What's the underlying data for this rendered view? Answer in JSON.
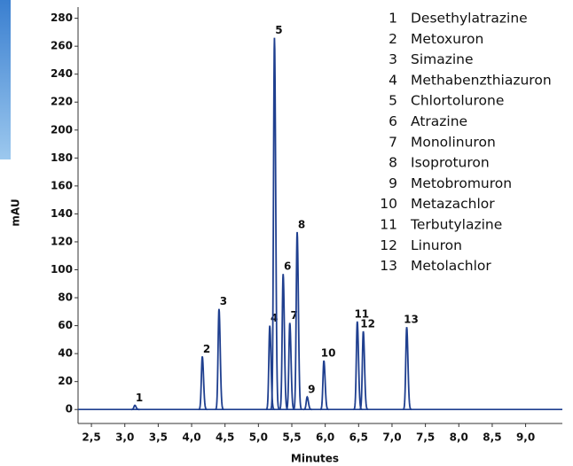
{
  "chart_data": {
    "type": "chromatogram",
    "x_label": "Minutes",
    "y_label": "mAU",
    "xlim": [
      2.3,
      9.55
    ],
    "ylim": [
      -10,
      288
    ],
    "xticks": [
      {
        "value": 2.5,
        "label": "2,5"
      },
      {
        "value": 3.0,
        "label": "3,0"
      },
      {
        "value": 3.5,
        "label": "3,5"
      },
      {
        "value": 4.0,
        "label": "4,0"
      },
      {
        "value": 4.5,
        "label": "4,5"
      },
      {
        "value": 5.0,
        "label": "5,0"
      },
      {
        "value": 5.5,
        "label": "5,5"
      },
      {
        "value": 6.0,
        "label": "6,0"
      },
      {
        "value": 6.5,
        "label": "6,5"
      },
      {
        "value": 7.0,
        "label": "7,0"
      },
      {
        "value": 7.5,
        "label": "7,5"
      },
      {
        "value": 8.0,
        "label": "8,0"
      },
      {
        "value": 8.5,
        "label": "8,5"
      },
      {
        "value": 9.0,
        "label": "9,0"
      }
    ],
    "yticks": [
      0,
      20,
      40,
      60,
      80,
      100,
      120,
      140,
      160,
      180,
      200,
      220,
      240,
      260,
      280
    ],
    "color": "#1f3f8f",
    "peaks": [
      {
        "label": "1",
        "x": 3.15,
        "height": 3
      },
      {
        "label": "2",
        "x": 4.16,
        "height": 38
      },
      {
        "label": "3",
        "x": 4.41,
        "height": 72
      },
      {
        "label": "4",
        "x": 5.17,
        "height": 60
      },
      {
        "label": "5",
        "x": 5.24,
        "height": 266
      },
      {
        "label": "6",
        "x": 5.37,
        "height": 97
      },
      {
        "label": "7",
        "x": 5.47,
        "height": 62
      },
      {
        "label": "8",
        "x": 5.58,
        "height": 127
      },
      {
        "label": "9",
        "x": 5.73,
        "height": 9
      },
      {
        "label": "10",
        "x": 5.98,
        "height": 35
      },
      {
        "label": "11",
        "x": 6.48,
        "height": 63
      },
      {
        "label": "12",
        "x": 6.57,
        "height": 56
      },
      {
        "label": "13",
        "x": 7.22,
        "height": 59
      }
    ],
    "legend": [
      {
        "number": "1",
        "name": "Desethylatrazine"
      },
      {
        "number": "2",
        "name": "Metoxuron"
      },
      {
        "number": "3",
        "name": "Simazine"
      },
      {
        "number": "4",
        "name": "Methabenzthiazuron"
      },
      {
        "number": "5",
        "name": "Chlortolurone"
      },
      {
        "number": "6",
        "name": "Atrazine"
      },
      {
        "number": "7",
        "name": "Monolinuron"
      },
      {
        "number": "8",
        "name": "Isoproturon"
      },
      {
        "number": "9",
        "name": "Metobromuron"
      },
      {
        "number": "10",
        "name": "Metazachlor"
      },
      {
        "number": "11",
        "name": "Terbutylazine"
      },
      {
        "number": "12",
        "name": "Linuron"
      },
      {
        "number": "13",
        "name": "Metolachlor"
      }
    ]
  }
}
